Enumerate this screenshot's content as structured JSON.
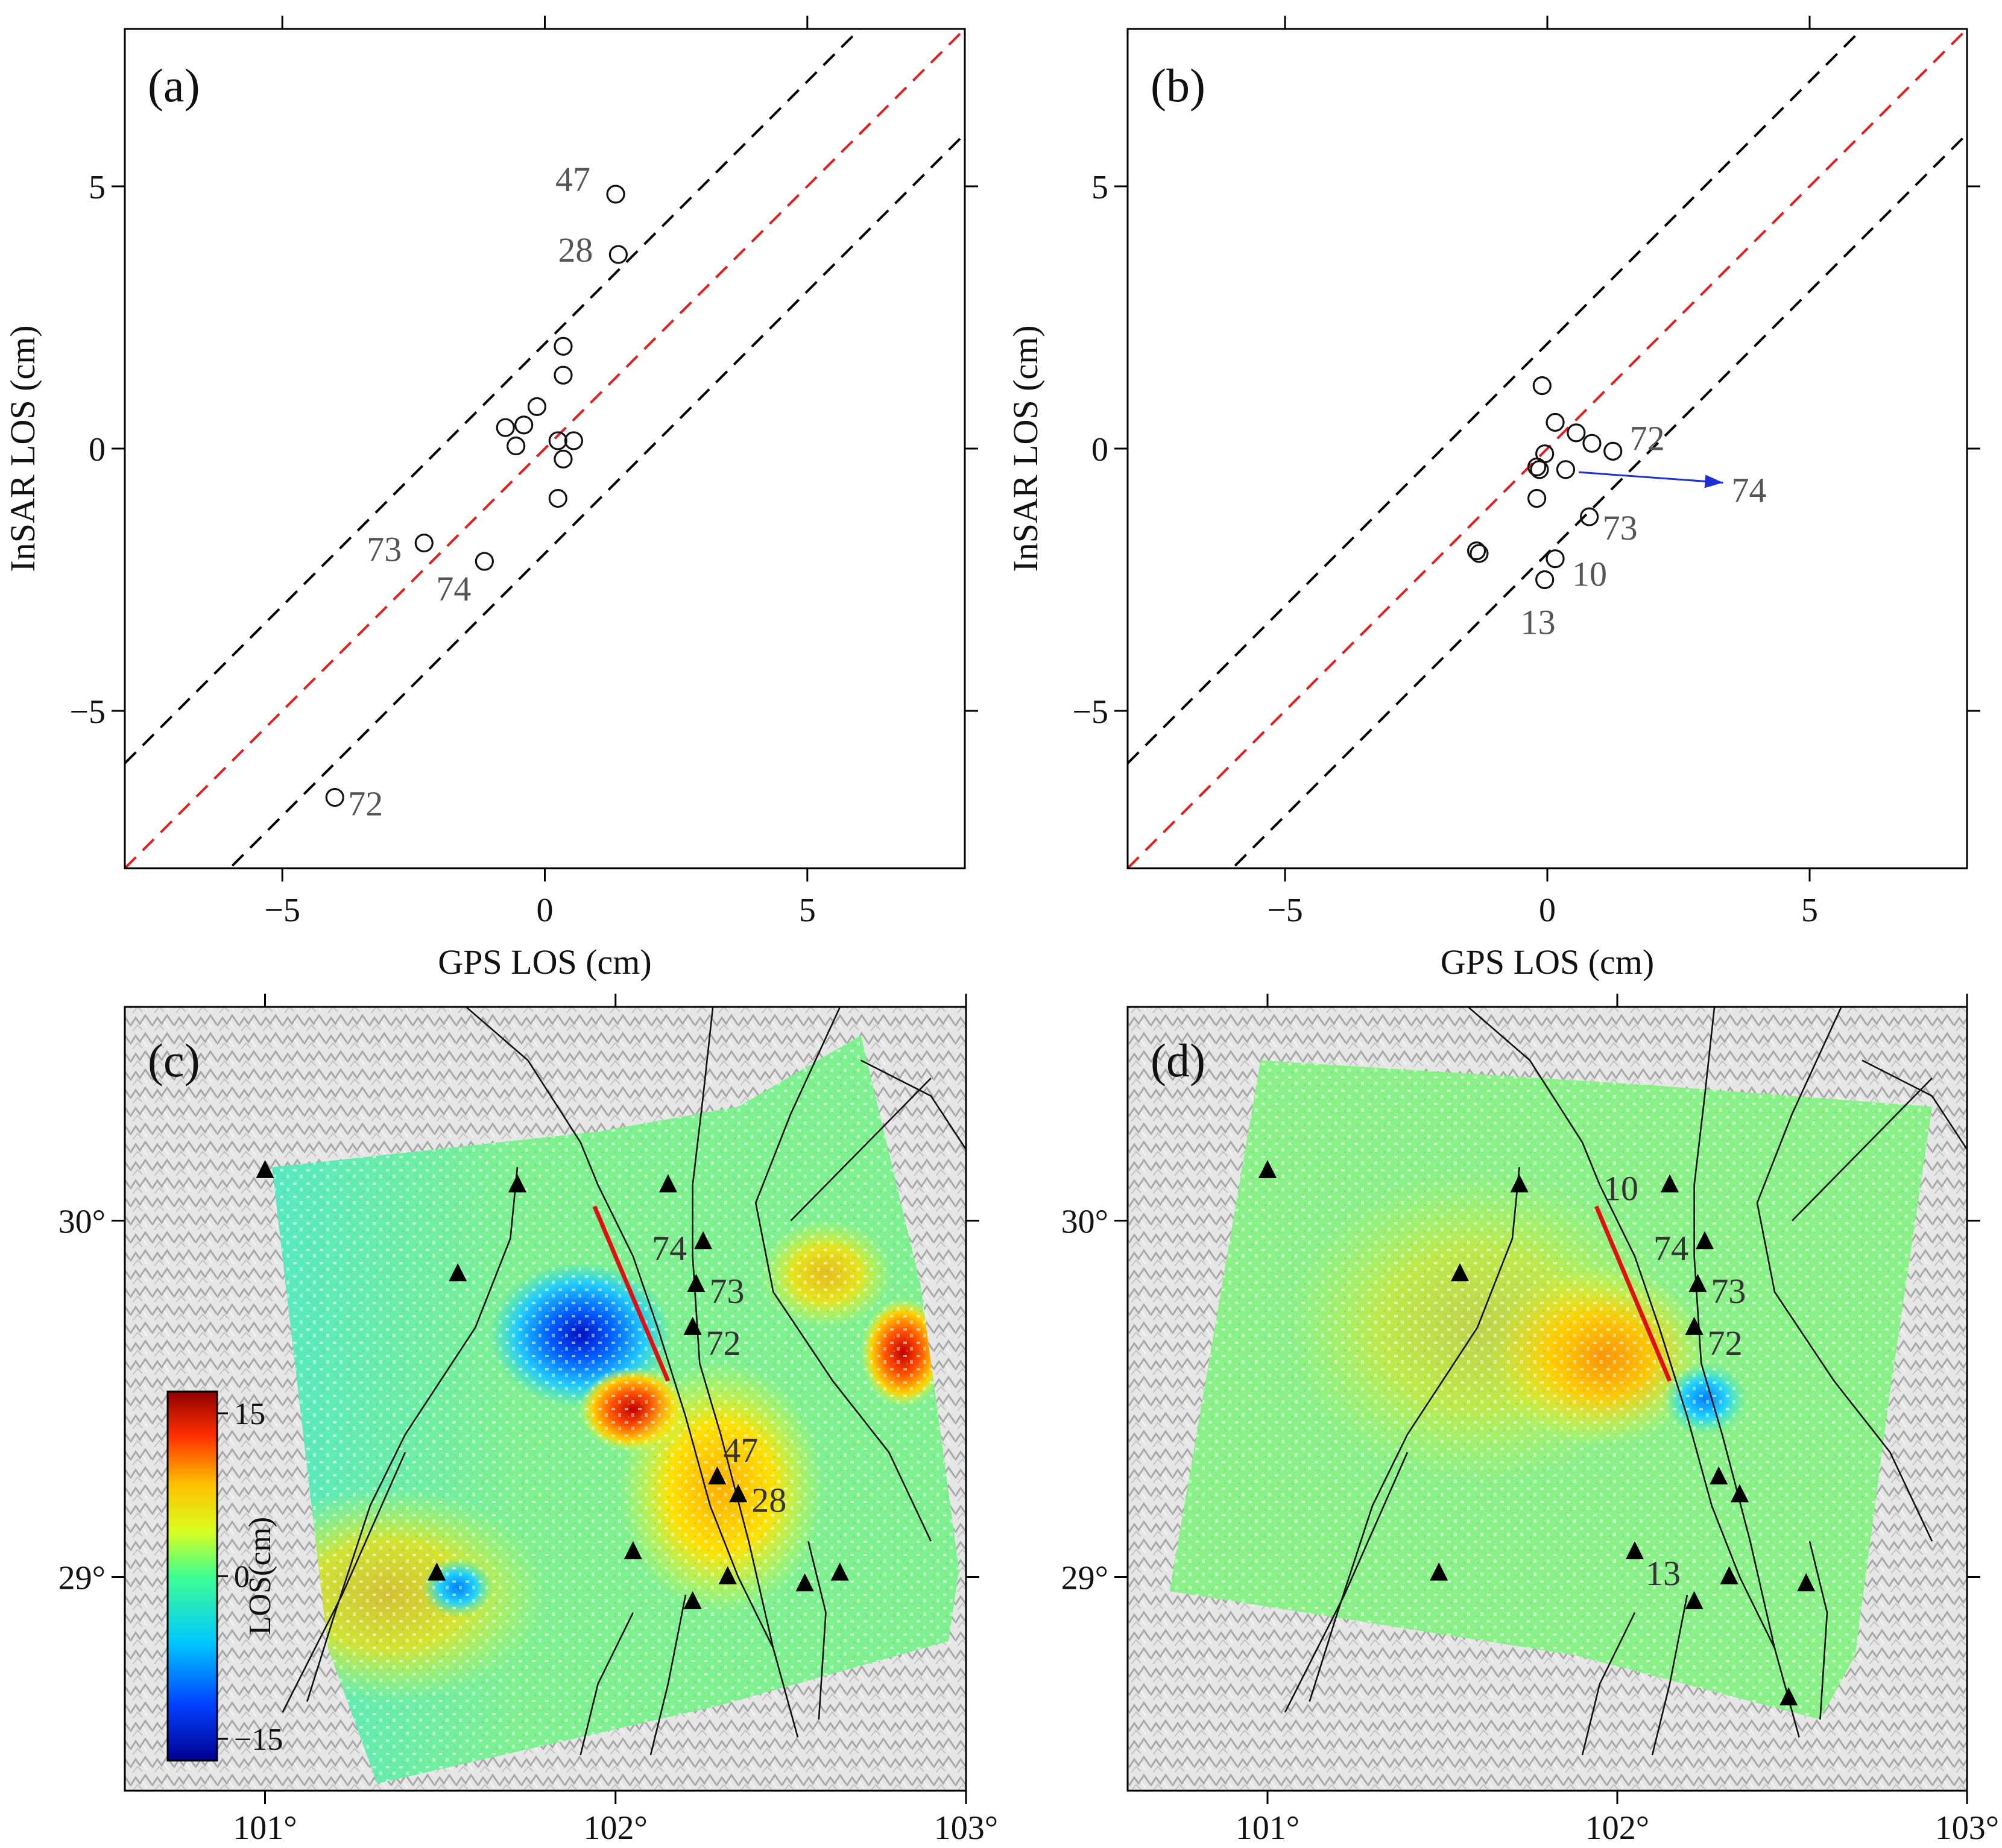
{
  "colors": {
    "one_to_one": "#e02020",
    "bounds": "#000000",
    "outlier_arrow": "#1f2fd6",
    "fault_rupture": "#e01010",
    "station": "#000000"
  },
  "chart_data": [
    {
      "type": "scatter",
      "panel": "(a)",
      "xlabel": "GPS LOS (cm)",
      "ylabel": "InSAR LOS (cm)",
      "xlim": [
        -8,
        8
      ],
      "ylim": [
        -8,
        8
      ],
      "xticks": [
        -5,
        0,
        5
      ],
      "yticks": [
        -5,
        0,
        5
      ],
      "xtick_labels": [
        "−5",
        "0",
        "5"
      ],
      "ytick_labels": [
        "−5",
        "0",
        "5"
      ],
      "reference_lines": [
        {
          "name": "1:1",
          "offset": 0,
          "style": "red-dashed"
        },
        {
          "name": "+2 cm",
          "offset": 2,
          "style": "black-dashed"
        },
        {
          "name": "-2 cm",
          "offset": -2,
          "style": "black-dashed"
        }
      ],
      "points": [
        {
          "x": 1.35,
          "y": 4.85,
          "label": "47"
        },
        {
          "x": 1.4,
          "y": 3.7,
          "label": "28"
        },
        {
          "x": 0.35,
          "y": 1.95,
          "label": ""
        },
        {
          "x": 0.35,
          "y": 1.4,
          "label": ""
        },
        {
          "x": -0.15,
          "y": 0.8,
          "label": ""
        },
        {
          "x": -0.4,
          "y": 0.45,
          "label": ""
        },
        {
          "x": -0.75,
          "y": 0.4,
          "label": ""
        },
        {
          "x": -0.55,
          "y": 0.05,
          "label": ""
        },
        {
          "x": 0.25,
          "y": 0.15,
          "label": ""
        },
        {
          "x": 0.55,
          "y": 0.15,
          "label": ""
        },
        {
          "x": 0.35,
          "y": -0.2,
          "label": ""
        },
        {
          "x": 0.25,
          "y": -0.95,
          "label": ""
        },
        {
          "x": -2.3,
          "y": -1.8,
          "label": "73"
        },
        {
          "x": -1.15,
          "y": -2.15,
          "label": "74"
        },
        {
          "x": -4.0,
          "y": -6.65,
          "label": "72"
        }
      ]
    },
    {
      "type": "scatter",
      "panel": "(b)",
      "xlabel": "GPS LOS (cm)",
      "ylabel": "InSAR LOS (cm)",
      "xlim": [
        -8,
        8
      ],
      "ylim": [
        -8,
        8
      ],
      "xticks": [
        -5,
        0,
        5
      ],
      "yticks": [
        -5,
        0,
        5
      ],
      "xtick_labels": [
        "−5",
        "0",
        "5"
      ],
      "ytick_labels": [
        "−5",
        "0",
        "5"
      ],
      "reference_lines": [
        {
          "name": "1:1",
          "offset": 0,
          "style": "red-dashed"
        },
        {
          "name": "+2 cm",
          "offset": 2,
          "style": "black-dashed"
        },
        {
          "name": "-2 cm",
          "offset": -2,
          "style": "black-dashed"
        }
      ],
      "points": [
        {
          "x": -0.1,
          "y": 1.2,
          "label": ""
        },
        {
          "x": 0.15,
          "y": 0.5,
          "label": ""
        },
        {
          "x": 0.55,
          "y": 0.3,
          "label": ""
        },
        {
          "x": 0.85,
          "y": 0.1,
          "label": ""
        },
        {
          "x": 1.25,
          "y": -0.05,
          "label": "72"
        },
        {
          "x": -0.05,
          "y": -0.1,
          "label": ""
        },
        {
          "x": -0.2,
          "y": -0.35,
          "label": ""
        },
        {
          "x": -0.15,
          "y": -0.4,
          "label": ""
        },
        {
          "x": 0.35,
          "y": -0.4,
          "label": ""
        },
        {
          "x": -0.2,
          "y": -0.95,
          "label": ""
        },
        {
          "x": 0.8,
          "y": -1.3,
          "label": "73"
        },
        {
          "x": -1.35,
          "y": -1.95,
          "label": ""
        },
        {
          "x": -1.3,
          "y": -2.0,
          "label": ""
        },
        {
          "x": 0.15,
          "y": -2.1,
          "label": "10"
        },
        {
          "x": -0.05,
          "y": -2.5,
          "label": "13"
        }
      ],
      "annotation": {
        "label": "74",
        "from": [
          0.6,
          -0.45
        ],
        "to": [
          3.35,
          -0.65
        ]
      }
    },
    {
      "type": "heatmap",
      "panel": "(c)",
      "xticks": [
        101,
        102,
        103
      ],
      "xtick_labels": [
        "101°",
        "102°",
        "103°"
      ],
      "yticks": [
        29,
        30
      ],
      "ytick_labels": [
        "29°",
        "30°"
      ],
      "lon_range": [
        100.6,
        103.0
      ],
      "lat_range": [
        28.4,
        30.6
      ],
      "colorbar": {
        "label": "LOS(cm)",
        "ticks": [
          -15,
          0,
          15
        ],
        "tick_labels": [
          "−15",
          "0",
          "15"
        ],
        "range": [
          -17,
          17
        ]
      },
      "stations": [
        {
          "lon": 101.0,
          "lat": 30.14,
          "label": ""
        },
        {
          "lon": 101.72,
          "lat": 30.1,
          "label": ""
        },
        {
          "lon": 101.55,
          "lat": 29.85,
          "label": ""
        },
        {
          "lon": 102.15,
          "lat": 30.1,
          "label": ""
        },
        {
          "lon": 102.25,
          "lat": 29.94,
          "label": "74"
        },
        {
          "lon": 102.23,
          "lat": 29.82,
          "label": "73"
        },
        {
          "lon": 102.22,
          "lat": 29.7,
          "label": "72"
        },
        {
          "lon": 102.29,
          "lat": 29.28,
          "label": "47"
        },
        {
          "lon": 102.35,
          "lat": 29.23,
          "label": "28"
        },
        {
          "lon": 102.05,
          "lat": 29.07,
          "label": ""
        },
        {
          "lon": 101.49,
          "lat": 29.01,
          "label": ""
        },
        {
          "lon": 102.32,
          "lat": 29.0,
          "label": ""
        },
        {
          "lon": 102.54,
          "lat": 28.98,
          "label": ""
        },
        {
          "lon": 102.64,
          "lat": 29.01,
          "label": ""
        },
        {
          "lon": 102.22,
          "lat": 28.93,
          "label": ""
        }
      ]
    },
    {
      "type": "heatmap",
      "panel": "(d)",
      "xticks": [
        101,
        102,
        103
      ],
      "xtick_labels": [
        "101°",
        "102°",
        "103°"
      ],
      "yticks": [
        29,
        30
      ],
      "ytick_labels": [
        "29°",
        "30°"
      ],
      "lon_range": [
        100.6,
        103.0
      ],
      "lat_range": [
        28.4,
        30.6
      ],
      "stations": [
        {
          "lon": 101.0,
          "lat": 30.14,
          "label": ""
        },
        {
          "lon": 101.72,
          "lat": 30.1,
          "label": ""
        },
        {
          "lon": 101.55,
          "lat": 29.85,
          "label": ""
        },
        {
          "lon": 102.15,
          "lat": 30.1,
          "label": "10"
        },
        {
          "lon": 102.25,
          "lat": 29.94,
          "label": "74"
        },
        {
          "lon": 102.23,
          "lat": 29.82,
          "label": "73"
        },
        {
          "lon": 102.22,
          "lat": 29.7,
          "label": "72"
        },
        {
          "lon": 102.29,
          "lat": 29.28,
          "label": ""
        },
        {
          "lon": 102.35,
          "lat": 29.23,
          "label": ""
        },
        {
          "lon": 102.05,
          "lat": 29.07,
          "label": "13"
        },
        {
          "lon": 101.49,
          "lat": 29.01,
          "label": ""
        },
        {
          "lon": 102.32,
          "lat": 29.0,
          "label": ""
        },
        {
          "lon": 102.54,
          "lat": 28.98,
          "label": ""
        },
        {
          "lon": 102.22,
          "lat": 28.93,
          "label": ""
        },
        {
          "lon": 102.49,
          "lat": 28.66,
          "label": ""
        }
      ]
    }
  ]
}
